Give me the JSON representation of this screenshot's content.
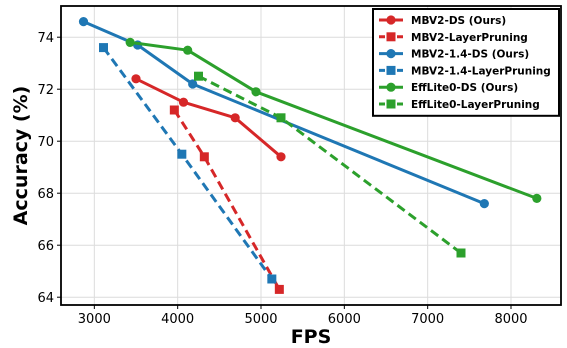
{
  "chart_data": {
    "type": "line",
    "title": "",
    "xlabel": "FPS",
    "ylabel": "Accuracy (%)",
    "xlim": [
      2600,
      8600
    ],
    "ylim": [
      63.7,
      75.2
    ],
    "xticks": [
      3000,
      4000,
      5000,
      6000,
      7000,
      8000
    ],
    "yticks": [
      64,
      66,
      68,
      70,
      72,
      74
    ],
    "grid": true,
    "legend_position": "top-right",
    "series": [
      {
        "name": "MBV2-DS (Ours)",
        "color": "#d62728",
        "linestyle": "solid",
        "marker": "circle",
        "points": [
          [
            3500,
            72.4
          ],
          [
            4070,
            71.5
          ],
          [
            4690,
            70.9
          ],
          [
            5240,
            69.4
          ]
        ]
      },
      {
        "name": "MBV2-LayerPruning",
        "color": "#d62728",
        "linestyle": "dashed",
        "marker": "square",
        "points": [
          [
            3960,
            71.2
          ],
          [
            4320,
            69.4
          ],
          [
            5220,
            64.3
          ]
        ]
      },
      {
        "name": "MBV2-1.4-DS (Ours)",
        "color": "#1f77b4",
        "linestyle": "solid",
        "marker": "circle",
        "points": [
          [
            2870,
            74.6
          ],
          [
            3520,
            73.7
          ],
          [
            4180,
            72.2
          ],
          [
            7680,
            67.6
          ]
        ]
      },
      {
        "name": "MBV2-1.4-LayerPruning",
        "color": "#1f77b4",
        "linestyle": "dashed",
        "marker": "square",
        "points": [
          [
            3110,
            73.6
          ],
          [
            4050,
            69.5
          ],
          [
            5130,
            64.7
          ]
        ]
      },
      {
        "name": "EffLite0-DS (Ours)",
        "color": "#2ca02c",
        "linestyle": "solid",
        "marker": "circle",
        "points": [
          [
            3430,
            73.8
          ],
          [
            4120,
            73.5
          ],
          [
            4940,
            71.9
          ],
          [
            8310,
            67.8
          ]
        ]
      },
      {
        "name": "EffLite0-LayerPruning",
        "color": "#2ca02c",
        "linestyle": "dashed",
        "marker": "square",
        "points": [
          [
            4250,
            72.5
          ],
          [
            5240,
            70.9
          ],
          [
            7400,
            65.7
          ]
        ]
      }
    ]
  }
}
